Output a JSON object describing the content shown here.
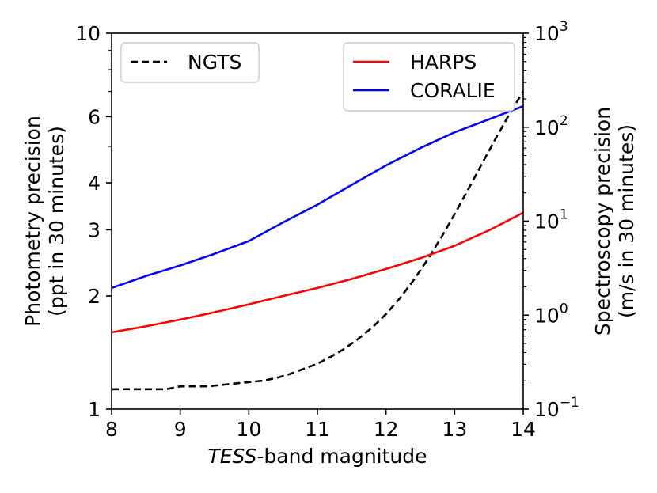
{
  "chart_data": {
    "type": "line",
    "xlabel_italic": "TESS",
    "xlabel_rest": "-band magnitude",
    "left_ylabel_line1": "Photometry precision",
    "left_ylabel_line2": "(ppt in 30 minutes)",
    "right_ylabel_line1": "Spectroscopy precision",
    "right_ylabel_line2": "(m/s in 30 minutes)",
    "xlim": [
      8,
      14
    ],
    "left_ylim": [
      1,
      10
    ],
    "left_yscale": "log",
    "right_ylim": [
      0.1,
      1000
    ],
    "right_yscale": "log",
    "x_ticks": [
      8,
      9,
      10,
      11,
      12,
      13,
      14
    ],
    "x_tick_labels": [
      "8",
      "9",
      "10",
      "11",
      "12",
      "13",
      "14"
    ],
    "left_ticks": [
      1,
      2,
      3,
      4,
      6,
      10
    ],
    "left_tick_labels": [
      "1",
      "2",
      "3",
      "4",
      "6",
      "10"
    ],
    "right_ticks": [
      {
        "value": 0.1,
        "base": "10",
        "exp": "−1"
      },
      {
        "value": 1,
        "base": "10",
        "exp": "0"
      },
      {
        "value": 10,
        "base": "10",
        "exp": "1"
      },
      {
        "value": 100,
        "base": "10",
        "exp": "2"
      },
      {
        "value": 1000,
        "base": "10",
        "exp": "3"
      }
    ],
    "series": [
      {
        "name": "NGTS",
        "axis": "left",
        "color": "#000000",
        "style": "dashed",
        "x": [
          8.0,
          8.2,
          8.4,
          8.6,
          8.8,
          9.0,
          9.2,
          9.4,
          9.6,
          9.8,
          10.0,
          10.2,
          10.4,
          10.6,
          10.8,
          11.0,
          11.2,
          11.4,
          11.6,
          11.8,
          12.0,
          12.2,
          12.4,
          12.6,
          12.8,
          13.0,
          13.2,
          13.4,
          13.6,
          13.8,
          14.0
        ],
        "y": [
          1.13,
          1.13,
          1.13,
          1.13,
          1.13,
          1.15,
          1.15,
          1.15,
          1.16,
          1.17,
          1.18,
          1.19,
          1.21,
          1.24,
          1.28,
          1.32,
          1.38,
          1.45,
          1.54,
          1.65,
          1.79,
          1.97,
          2.2,
          2.49,
          2.85,
          3.3,
          3.85,
          4.5,
          5.25,
          6.1,
          7.0
        ]
      },
      {
        "name": "HARPS",
        "axis": "left",
        "color": "#ff0000",
        "style": "solid",
        "x": [
          8.0,
          8.5,
          9.0,
          9.5,
          10.0,
          10.5,
          11.0,
          11.5,
          12.0,
          12.5,
          13.0,
          13.5,
          14.0
        ],
        "y": [
          1.6,
          1.66,
          1.73,
          1.81,
          1.9,
          2.0,
          2.1,
          2.22,
          2.36,
          2.52,
          2.72,
          2.99,
          3.33
        ]
      },
      {
        "name": "CORALIE",
        "axis": "left",
        "color": "#0000ff",
        "style": "solid",
        "x": [
          8.0,
          8.5,
          9.0,
          9.5,
          10.0,
          10.5,
          11.0,
          11.5,
          12.0,
          12.5,
          13.0,
          13.5,
          14.0
        ],
        "y": [
          2.1,
          2.26,
          2.41,
          2.59,
          2.8,
          3.14,
          3.5,
          3.95,
          4.45,
          4.95,
          5.45,
          5.9,
          6.4
        ]
      }
    ],
    "legend_left": {
      "entries": [
        "NGTS"
      ],
      "placement": "top-left"
    },
    "legend_right": {
      "entries": [
        "HARPS",
        "CORALIE"
      ],
      "placement": "top-right"
    }
  }
}
